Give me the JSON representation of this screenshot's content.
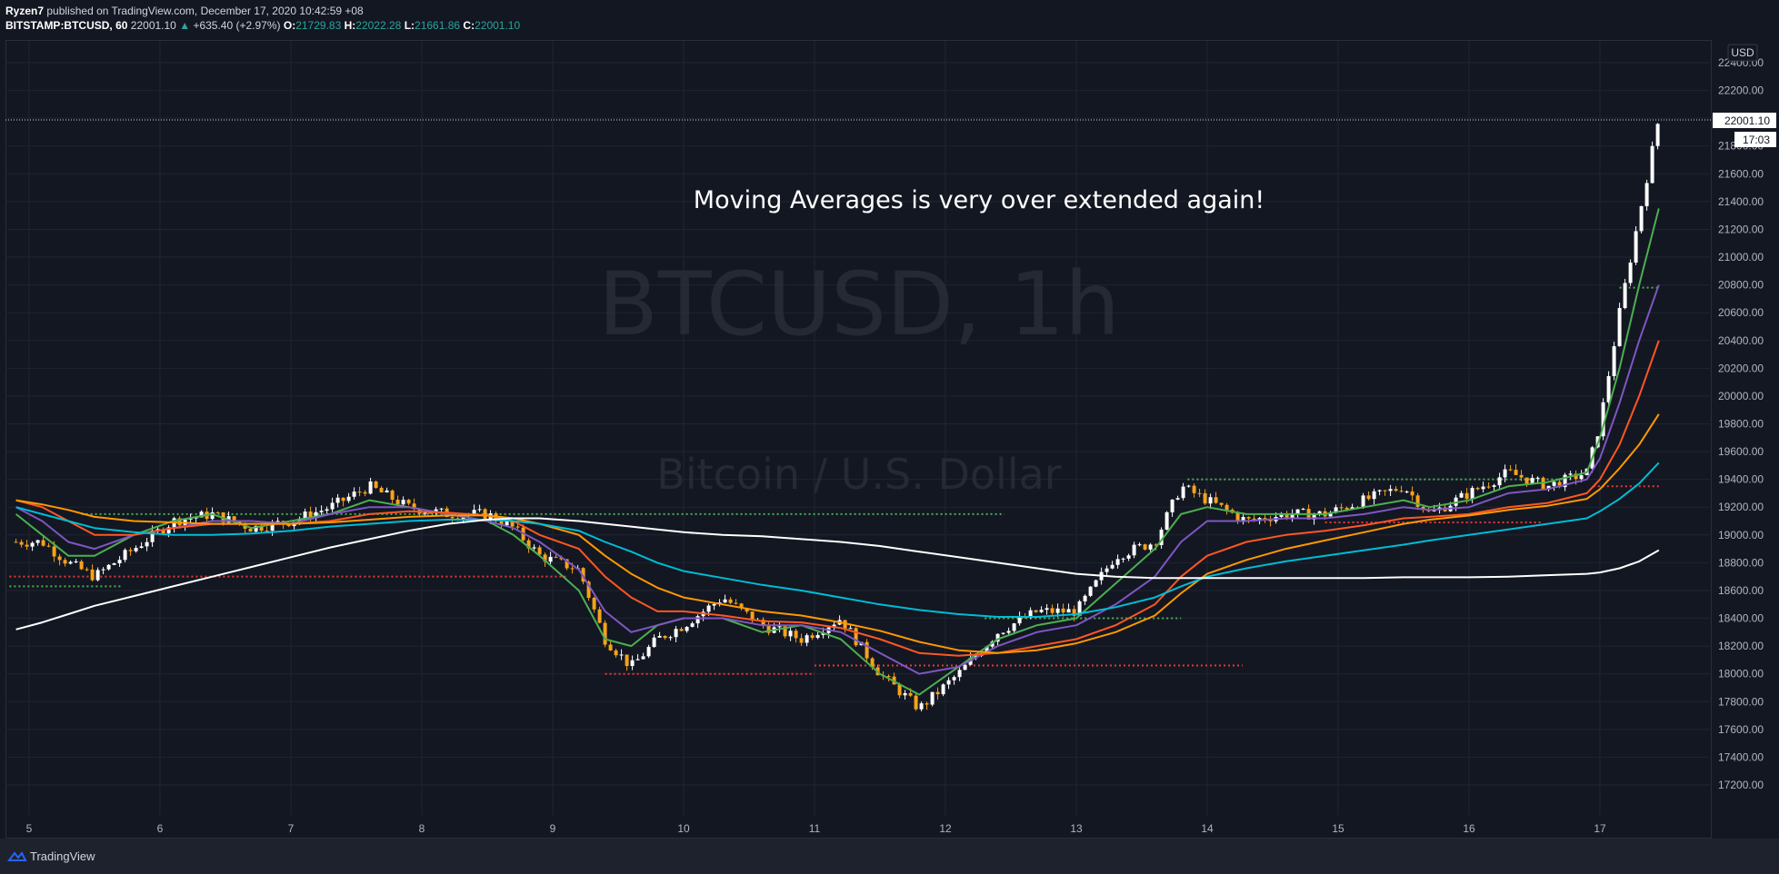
{
  "header": {
    "author": "Ryzen7",
    "published": "published on TradingView.com, December 17, 2020 10:42:59 +08",
    "symbol": "BITSTAMP:BTCUSD, 60",
    "price": "22001.10",
    "arrow": "▲",
    "change": "+635.40 (+2.97%)",
    "o_label": "O:",
    "o_value": "21729.83",
    "h_label": "H:",
    "h_value": "22022.28",
    "l_label": "L:",
    "l_value": "21661.86",
    "c_label": "C:",
    "c_value": "22001.10"
  },
  "watermark": {
    "symbol": "BTCUSD, 1h",
    "description": "Bitcoin / U.S. Dollar"
  },
  "annotation": "Moving Averages is very over extended again!",
  "price_axis": {
    "currency_label": "USD",
    "last_price_label": "22001.10",
    "countdown_label": "17:03"
  },
  "footer": {
    "brand": "TradingView"
  },
  "colors": {
    "background": "#131722",
    "candle_up": "#ffffff",
    "candle_down": "#f7a21b",
    "grid": "#1f2431"
  },
  "chart_data": {
    "type": "line",
    "symbol": "BITSTAMP:BTCUSD",
    "interval": "1h",
    "ylim": [
      17200,
      22400
    ],
    "y_ticks": [
      22400,
      22200,
      22000,
      21800,
      21600,
      21400,
      21200,
      21000,
      20800,
      20600,
      20400,
      20200,
      20000,
      19800,
      19600,
      19400,
      19200,
      19000,
      18800,
      18600,
      18400,
      18200,
      18000,
      17800,
      17600,
      17400,
      17200
    ],
    "x_ticks": [
      "5",
      "6",
      "7",
      "8",
      "9",
      "10",
      "11",
      "12",
      "13",
      "14",
      "15",
      "16",
      "17"
    ],
    "last_price": 22001.1,
    "price_path_close": {
      "x": [
        4.9,
        5.1,
        5.3,
        5.5,
        5.8,
        6.1,
        6.4,
        6.7,
        7.0,
        7.3,
        7.6,
        7.9,
        8.2,
        8.5,
        8.7,
        8.9,
        9.2,
        9.4,
        9.6,
        9.8,
        10.0,
        10.3,
        10.6,
        10.9,
        11.2,
        11.5,
        11.8,
        12.1,
        12.4,
        12.7,
        13.0,
        13.3,
        13.6,
        13.8,
        14.0,
        14.3,
        14.6,
        14.9,
        15.2,
        15.5,
        15.7,
        16.0,
        16.3,
        16.6,
        16.9,
        17.0,
        17.15,
        17.3,
        17.45
      ],
      "y": [
        18950,
        18950,
        18800,
        18700,
        18900,
        19100,
        19150,
        19050,
        19100,
        19200,
        19350,
        19200,
        19150,
        19150,
        19050,
        18850,
        18750,
        18250,
        18050,
        18250,
        18350,
        18550,
        18350,
        18250,
        18400,
        18000,
        17750,
        18000,
        18300,
        18450,
        18450,
        18850,
        18950,
        19350,
        19250,
        19100,
        19150,
        19150,
        19250,
        19350,
        19150,
        19300,
        19450,
        19350,
        19450,
        19800,
        20600,
        21300,
        22001
      ]
    },
    "moving_averages": [
      {
        "color": "#4caf50",
        "values": [
          19150,
          19000,
          18850,
          18850,
          19000,
          19100,
          19150,
          19050,
          19100,
          19150,
          19250,
          19200,
          19150,
          19100,
          19000,
          18850,
          18600,
          18250,
          18200,
          18350,
          18400,
          18400,
          18300,
          18350,
          18250,
          18000,
          17850,
          18050,
          18250,
          18350,
          18400,
          18650,
          18900,
          19150,
          19200,
          19150,
          19150,
          19150,
          19200,
          19250,
          19200,
          19250,
          19350,
          19380,
          19450,
          19700,
          20200,
          20800,
          21350
        ]
      },
      {
        "color": "#7e57c2",
        "values": [
          19200,
          19100,
          18950,
          18900,
          19000,
          19050,
          19100,
          19100,
          19080,
          19150,
          19200,
          19200,
          19150,
          19100,
          19050,
          18950,
          18750,
          18450,
          18300,
          18350,
          18400,
          18400,
          18350,
          18350,
          18300,
          18150,
          18000,
          18050,
          18200,
          18300,
          18350,
          18500,
          18700,
          18950,
          19100,
          19100,
          19120,
          19120,
          19150,
          19200,
          19180,
          19200,
          19300,
          19330,
          19400,
          19550,
          19950,
          20400,
          20800
        ]
      },
      {
        "color": "#ff5722",
        "values": [
          19250,
          19200,
          19100,
          19000,
          19000,
          19050,
          19080,
          19080,
          19080,
          19100,
          19150,
          19170,
          19160,
          19140,
          19100,
          19000,
          18900,
          18700,
          18550,
          18450,
          18450,
          18420,
          18380,
          18370,
          18330,
          18250,
          18150,
          18130,
          18150,
          18200,
          18250,
          18350,
          18500,
          18700,
          18850,
          18950,
          19000,
          19030,
          19070,
          19120,
          19130,
          19150,
          19200,
          19230,
          19300,
          19400,
          19650,
          20000,
          20400
        ]
      },
      {
        "color": "#ff9800",
        "values": [
          19250,
          19220,
          19180,
          19130,
          19100,
          19090,
          19080,
          19080,
          19080,
          19090,
          19110,
          19130,
          19140,
          19140,
          19120,
          19080,
          19000,
          18850,
          18720,
          18620,
          18550,
          18500,
          18450,
          18420,
          18370,
          18310,
          18230,
          18170,
          18150,
          18170,
          18220,
          18300,
          18420,
          18580,
          18720,
          18820,
          18900,
          18960,
          19020,
          19080,
          19110,
          19140,
          19180,
          19210,
          19260,
          19330,
          19480,
          19650,
          19870
        ]
      },
      {
        "color": "#00bcd4",
        "values": [
          19200,
          19150,
          19100,
          19050,
          19020,
          19000,
          19000,
          19010,
          19030,
          19060,
          19080,
          19100,
          19110,
          19110,
          19100,
          19080,
          19030,
          18950,
          18880,
          18800,
          18740,
          18690,
          18640,
          18600,
          18550,
          18500,
          18460,
          18430,
          18410,
          18410,
          18430,
          18480,
          18550,
          18630,
          18700,
          18760,
          18810,
          18850,
          18890,
          18930,
          18960,
          19000,
          19040,
          19080,
          19120,
          19170,
          19260,
          19370,
          19520
        ]
      },
      {
        "color": "#ffffff",
        "values": [
          18320,
          18370,
          18430,
          18490,
          18560,
          18630,
          18700,
          18770,
          18840,
          18910,
          18970,
          19030,
          19080,
          19110,
          19120,
          19120,
          19100,
          19080,
          19060,
          19040,
          19020,
          19000,
          18990,
          18970,
          18950,
          18920,
          18880,
          18840,
          18800,
          18760,
          18720,
          18700,
          18690,
          18690,
          18690,
          18690,
          18690,
          18690,
          18690,
          18695,
          18695,
          18695,
          18700,
          18710,
          18720,
          18730,
          18760,
          18810,
          18890
        ]
      }
    ],
    "levels": [
      {
        "color": "#4caf50",
        "y": 18630,
        "x_start": 4.85,
        "x_end": 5.7
      },
      {
        "color": "#e53935",
        "y": 18700,
        "x_start": 4.85,
        "x_end": 9.1
      },
      {
        "color": "#4caf50",
        "y": 19150,
        "x_start": 5.4,
        "x_end": 12.45
      },
      {
        "color": "#e53935",
        "y": 18000,
        "x_start": 9.4,
        "x_end": 11.0
      },
      {
        "color": "#e53935",
        "y": 18060,
        "x_start": 11.0,
        "x_end": 14.27
      },
      {
        "color": "#4caf50",
        "y": 18400,
        "x_start": 12.3,
        "x_end": 13.8
      },
      {
        "color": "#4caf50",
        "y": 19400,
        "x_start": 13.85,
        "x_end": 16.8
      },
      {
        "color": "#e53935",
        "y": 19090,
        "x_start": 14.9,
        "x_end": 16.55
      },
      {
        "color": "#4caf50",
        "y": 20780,
        "x_start": 17.15,
        "x_end": 17.45
      },
      {
        "color": "#e53935",
        "y": 19350,
        "x_start": 16.95,
        "x_end": 17.45
      }
    ]
  }
}
